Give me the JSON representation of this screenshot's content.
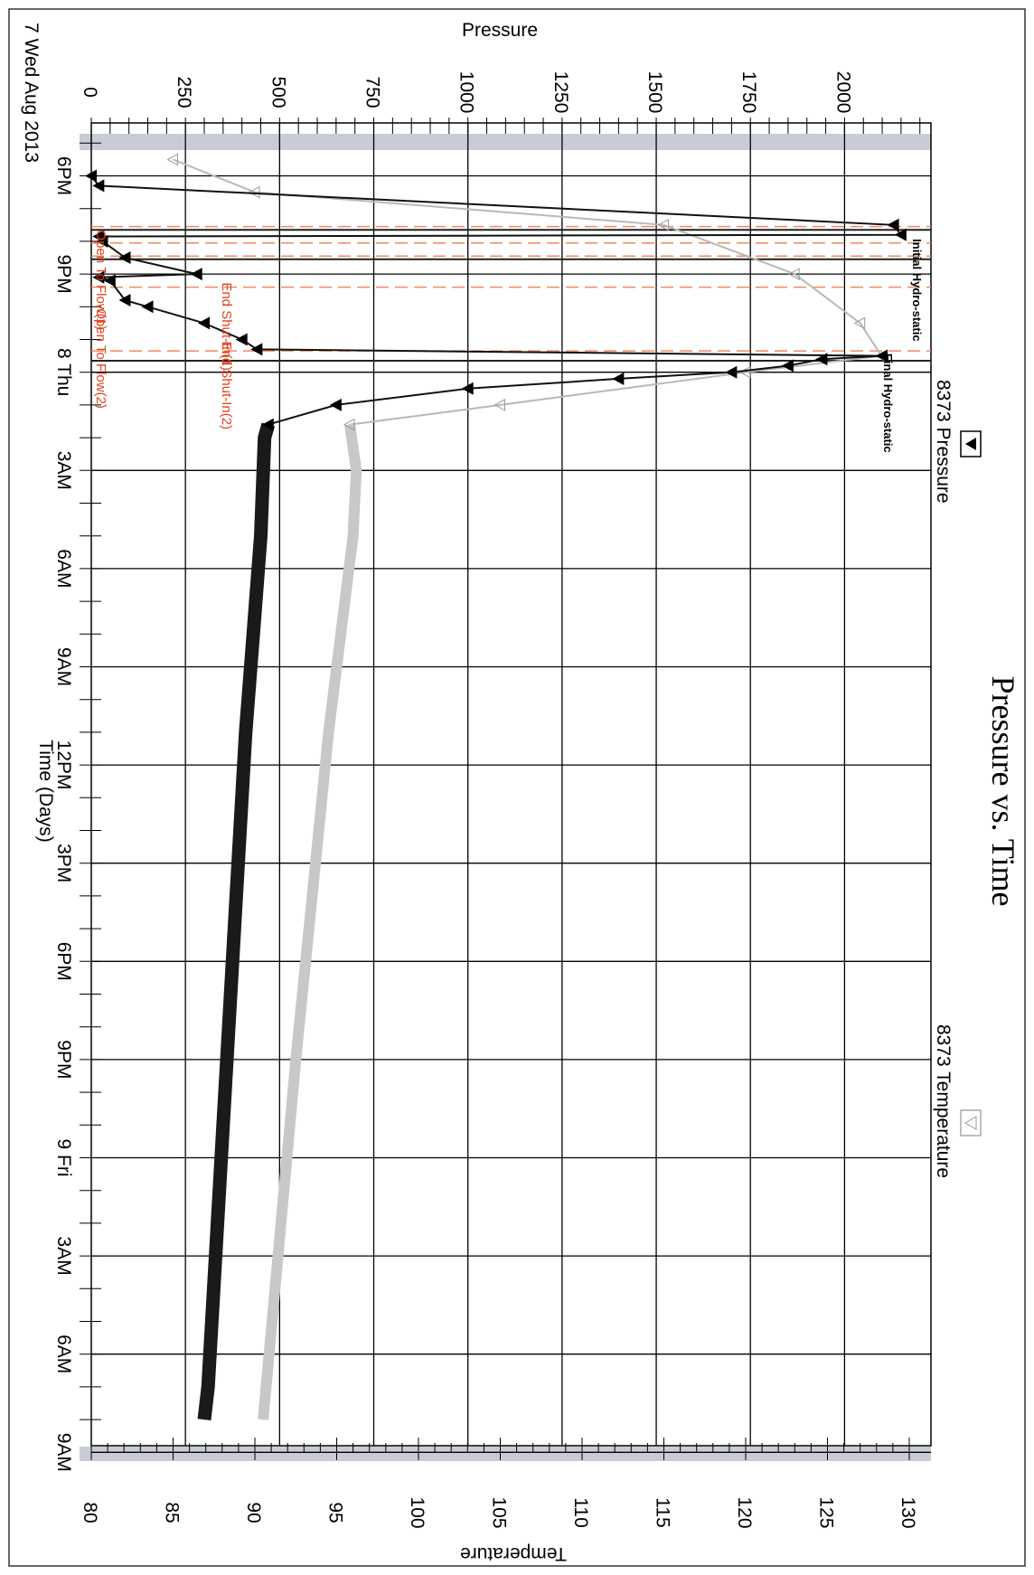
{
  "chart_data": {
    "type": "line",
    "title": "Pressure vs. Time",
    "xlabel": "Time (Days)",
    "ylabel_left": "Pressure",
    "ylabel_right": "Temperature",
    "x_unit": "hours since 7 Wed Aug 2013 3PM",
    "xlim": [
      0,
      66
    ],
    "ylim_pressure": [
      0,
      2200
    ],
    "ylim_temperature": [
      80,
      131
    ],
    "grid": true,
    "legend_position": "top",
    "x_tick_values": [
      3,
      6,
      9,
      12,
      15,
      18,
      21,
      24,
      27,
      30,
      33,
      36,
      39,
      42,
      45,
      48,
      51,
      54,
      57,
      60,
      63
    ],
    "x_tick_labels": [
      "6PM",
      "9PM",
      "8 Thu",
      "3AM",
      "6AM",
      "9AM",
      "12PM",
      "3PM",
      "6PM",
      "9PM",
      "9 Fri",
      "3AM",
      "6AM",
      "9AM"
    ],
    "x_tick_label_positions": [
      3,
      6,
      9,
      12,
      15,
      18,
      21,
      24,
      27,
      30,
      33,
      36,
      39,
      42
    ],
    "start_label": "7 Wed Aug 2013",
    "pressure_ticks": [
      0,
      250,
      500,
      750,
      1000,
      1250,
      1500,
      1750,
      2000
    ],
    "temperature_ticks": [
      80,
      85,
      90,
      95,
      100,
      105,
      110,
      115,
      120,
      125,
      130
    ],
    "series": [
      {
        "name": "8373 Pressure",
        "axis": "pressure",
        "color": "#111111",
        "marker": "filled-triangle",
        "x": [
          3.0,
          3.3,
          4.5,
          4.8,
          4.85,
          5.0,
          5.5,
          6.0,
          6.1,
          6.2,
          6.8,
          7.0,
          7.5,
          8.0,
          8.3,
          8.5,
          8.6,
          8.8,
          9.0,
          9.2,
          9.5,
          10.0,
          10.6,
          11.0,
          14.0,
          17.0,
          20.0,
          30.0,
          40.0,
          41.0
        ],
        "y": [
          0,
          20,
          2130,
          2150,
          20,
          30,
          90,
          280,
          20,
          50,
          90,
          150,
          300,
          400,
          440,
          2100,
          1940,
          1850,
          1700,
          1400,
          1000,
          650,
          470,
          460,
          450,
          430,
          410,
          360,
          310,
          300
        ]
      },
      {
        "name": "8373 Temperature",
        "axis": "temperature",
        "color": "#b8b8b8",
        "marker": "open-triangle",
        "x": [
          2.5,
          3.5,
          4.5,
          6.0,
          7.5,
          8.5,
          9.0,
          10.0,
          10.6,
          12.0,
          14.0,
          20.0,
          30.0,
          41.0
        ],
        "y": [
          85,
          90,
          115,
          123,
          127,
          128.3,
          120,
          105,
          95.8,
          96.2,
          96.0,
          94.5,
          92.5,
          90.5
        ]
      }
    ],
    "annotations": [
      {
        "text": "Initial Hydro-static",
        "x": 5.2,
        "color": "#000000"
      },
      {
        "text": "Final Hydro-static",
        "x": 8.7,
        "color": "#000000"
      },
      {
        "text": "End Shut-In(1)",
        "x": 6.2,
        "color": "#e0421e"
      },
      {
        "text": "End Shut-In(2)",
        "x": 8.0,
        "color": "#e0421e"
      },
      {
        "text": "Open To Flow(1)",
        "x": 4.6,
        "color": "#e0421e"
      },
      {
        "text": "Open To Flow(2)",
        "x": 7.0,
        "color": "#e0421e"
      }
    ],
    "event_lines_black": [
      4.65,
      5.55,
      8.65
    ],
    "event_lines_red": [
      4.55,
      5.05,
      5.45,
      6.4,
      8.35
    ]
  }
}
